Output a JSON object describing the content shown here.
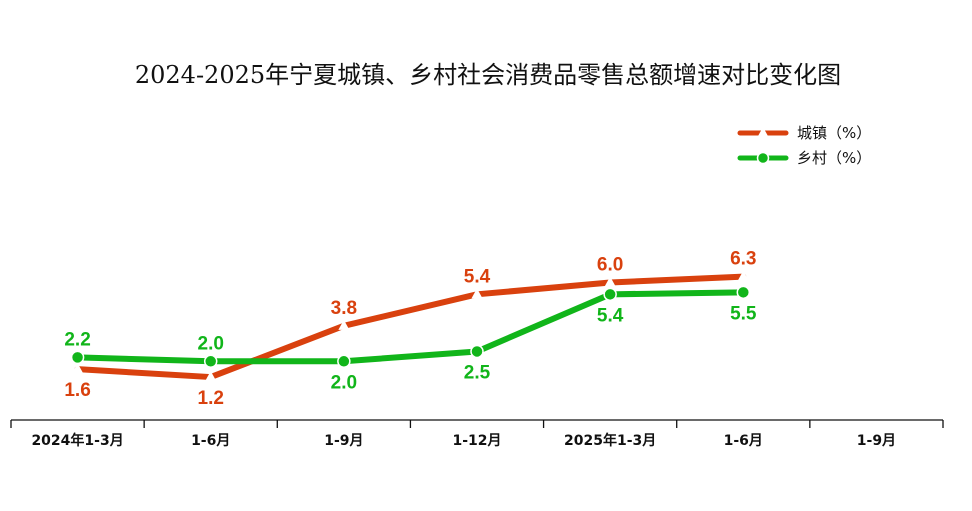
{
  "chart_data": {
    "type": "line",
    "title": "2024-2025年宁夏城镇、乡村社会消费品零售总额增速对比变化图",
    "xlabel": "",
    "ylabel": "",
    "categories": [
      "2024年1-3月",
      "1-6月",
      "1-9月",
      "1-12月",
      "2025年1-3月",
      "1-6月",
      "1-9月"
    ],
    "series": [
      {
        "name": "城镇（%）",
        "color": "#d9410e",
        "marker": "triangle",
        "values": [
          1.6,
          1.2,
          3.8,
          5.4,
          6.0,
          6.3,
          null
        ],
        "labels": [
          "1.6",
          "1.2",
          "3.8",
          "5.4",
          "6.0",
          "6.3",
          ""
        ]
      },
      {
        "name": "乡村（%）",
        "color": "#11b51a",
        "marker": "circle",
        "values": [
          2.2,
          2.0,
          2.0,
          2.5,
          5.4,
          5.5,
          null
        ],
        "labels": [
          "2.2",
          "2.0",
          "2.0",
          "2.5",
          "5.4",
          "5.5",
          ""
        ]
      }
    ],
    "legend_position": "top-right",
    "grid": false
  }
}
